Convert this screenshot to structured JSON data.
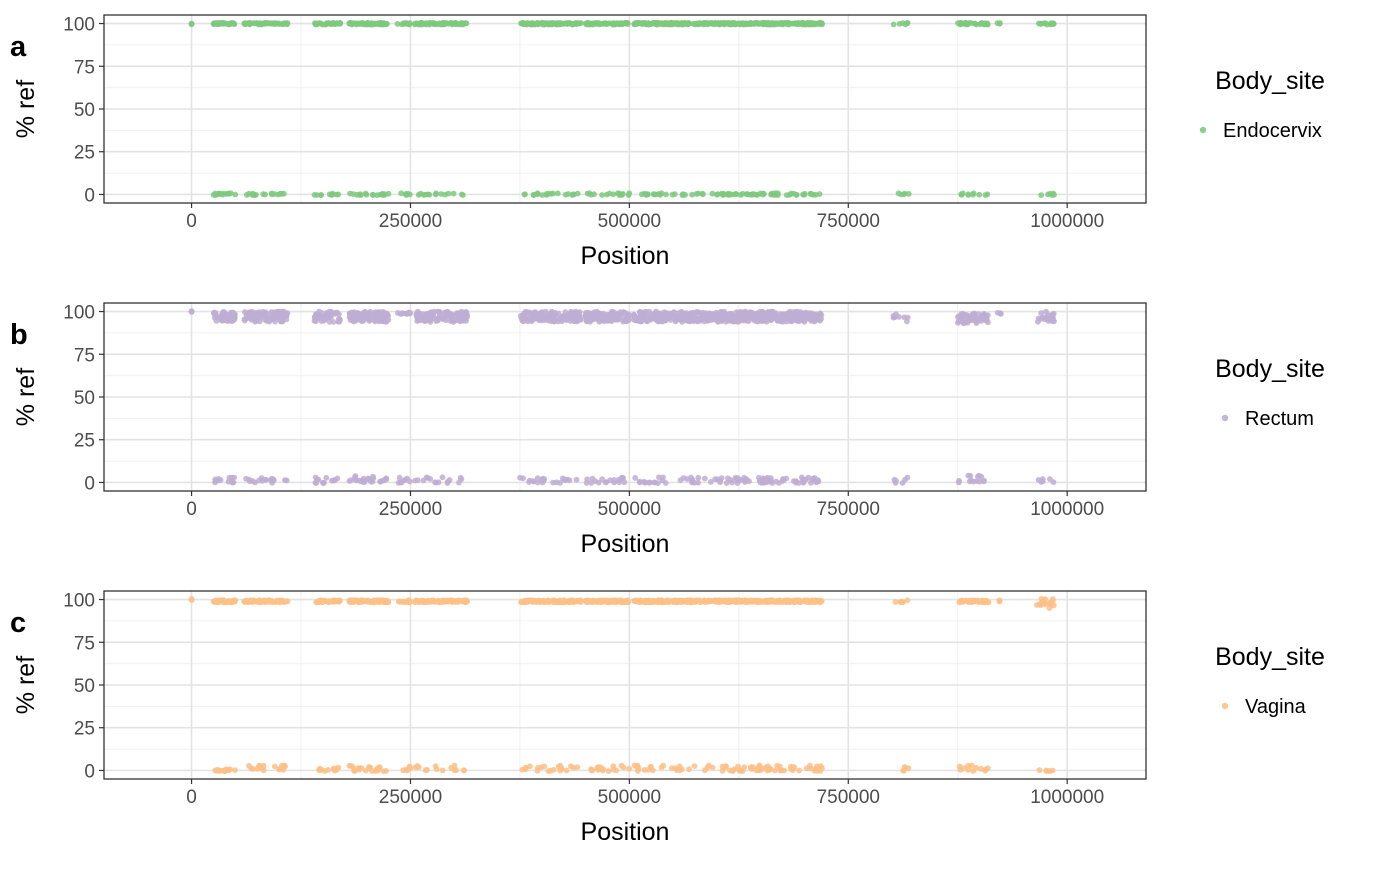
{
  "chart_data": [
    {
      "panel_label": "a",
      "type": "scatter",
      "xlabel": "Position",
      "ylabel": "% ref",
      "xlim": [
        -100000,
        1090000
      ],
      "ylim": [
        -5,
        105
      ],
      "x_ticks": [
        0,
        250000,
        500000,
        750000,
        1000000
      ],
      "x_tick_labels": [
        "0",
        "250000",
        "500000",
        "750000",
        "1000000"
      ],
      "y_ticks": [
        0,
        25,
        50,
        75,
        100
      ],
      "y_tick_labels": [
        "0",
        "25",
        "50",
        "75",
        "100"
      ],
      "grid": true,
      "legend": {
        "title": "Body_site",
        "position": "right",
        "entries": [
          "Endocervix"
        ]
      },
      "series": [
        {
          "name": "Endocervix",
          "color": "#7fc97f",
          "clusters": [
            [
              0,
              0,
              100,
              3
            ],
            [
              25000,
              50000,
              100,
              40
            ],
            [
              25000,
              50000,
              0,
              14
            ],
            [
              60000,
              110000,
              100,
              60
            ],
            [
              60000,
              110000,
              0,
              16
            ],
            [
              140000,
              170000,
              100,
              35
            ],
            [
              140000,
              170000,
              0,
              10
            ],
            [
              180000,
              225000,
              100,
              70
            ],
            [
              180000,
              225000,
              0,
              18
            ],
            [
              235000,
              250000,
              100,
              10
            ],
            [
              235000,
              250000,
              0,
              6
            ],
            [
              255000,
              315000,
              100,
              80
            ],
            [
              255000,
              315000,
              0,
              14
            ],
            [
              375000,
              445000,
              100,
              110
            ],
            [
              375000,
              445000,
              0,
              20
            ],
            [
              450000,
              500000,
              100,
              80
            ],
            [
              450000,
              500000,
              0,
              16
            ],
            [
              505000,
              540000,
              100,
              60
            ],
            [
              505000,
              540000,
              0,
              12
            ],
            [
              540000,
              600000,
              100,
              90
            ],
            [
              540000,
              600000,
              0,
              12
            ],
            [
              600000,
              660000,
              100,
              120
            ],
            [
              600000,
              660000,
              0,
              30
            ],
            [
              660000,
              720000,
              100,
              100
            ],
            [
              660000,
              720000,
              0,
              26
            ],
            [
              800000,
              820000,
              100,
              6
            ],
            [
              800000,
              820000,
              0,
              5
            ],
            [
              875000,
              910000,
              100,
              30
            ],
            [
              875000,
              910000,
              0,
              10
            ],
            [
              920000,
              925000,
              100,
              3
            ],
            [
              965000,
              985000,
              100,
              14
            ],
            [
              965000,
              985000,
              0,
              6
            ]
          ]
        }
      ]
    },
    {
      "panel_label": "b",
      "type": "scatter",
      "xlabel": "Position",
      "ylabel": "% ref",
      "xlim": [
        -100000,
        1090000
      ],
      "ylim": [
        -5,
        105
      ],
      "x_ticks": [
        0,
        250000,
        500000,
        750000,
        1000000
      ],
      "x_tick_labels": [
        "0",
        "250000",
        "500000",
        "750000",
        "1000000"
      ],
      "y_ticks": [
        0,
        25,
        50,
        75,
        100
      ],
      "y_tick_labels": [
        "0",
        "25",
        "50",
        "75",
        "100"
      ],
      "grid": true,
      "legend": {
        "title": "Body_site",
        "position": "right",
        "entries": [
          "Rectum"
        ]
      },
      "series": [
        {
          "name": "Rectum",
          "color": "#beaed4",
          "clusters": [
            [
              0,
              0,
              100,
              3
            ],
            [
              25000,
              50000,
              97,
              60
            ],
            [
              25000,
              50000,
              1,
              14
            ],
            [
              60000,
              110000,
              97,
              90
            ],
            [
              60000,
              110000,
              1,
              18
            ],
            [
              140000,
              170000,
              97,
              50
            ],
            [
              140000,
              170000,
              1,
              14
            ],
            [
              180000,
              225000,
              97,
              100
            ],
            [
              180000,
              225000,
              2,
              26
            ],
            [
              235000,
              250000,
              99,
              14
            ],
            [
              235000,
              250000,
              1,
              8
            ],
            [
              255000,
              315000,
              97,
              110
            ],
            [
              255000,
              315000,
              1,
              16
            ],
            [
              375000,
              445000,
              97,
              130
            ],
            [
              375000,
              445000,
              1,
              22
            ],
            [
              450000,
              500000,
              97,
              110
            ],
            [
              450000,
              500000,
              1,
              18
            ],
            [
              505000,
              540000,
              97,
              90
            ],
            [
              505000,
              540000,
              1,
              14
            ],
            [
              540000,
              600000,
              97,
              110
            ],
            [
              540000,
              600000,
              1,
              14
            ],
            [
              600000,
              660000,
              97,
              150
            ],
            [
              600000,
              660000,
              1,
              34
            ],
            [
              660000,
              720000,
              97,
              120
            ],
            [
              660000,
              720000,
              1,
              28
            ],
            [
              800000,
              820000,
              96,
              8
            ],
            [
              800000,
              820000,
              1,
              6
            ],
            [
              875000,
              910000,
              96,
              50
            ],
            [
              875000,
              910000,
              2,
              14
            ],
            [
              920000,
              925000,
              99,
              3
            ],
            [
              965000,
              985000,
              97,
              20
            ],
            [
              965000,
              985000,
              1,
              6
            ]
          ]
        }
      ]
    },
    {
      "panel_label": "c",
      "type": "scatter",
      "xlabel": "Position",
      "ylabel": "% ref",
      "xlim": [
        -100000,
        1090000
      ],
      "ylim": [
        -5,
        105
      ],
      "x_ticks": [
        0,
        250000,
        500000,
        750000,
        1000000
      ],
      "x_tick_labels": [
        "0",
        "250000",
        "500000",
        "750000",
        "1000000"
      ],
      "y_ticks": [
        0,
        25,
        50,
        75,
        100
      ],
      "y_tick_labels": [
        "0",
        "25",
        "50",
        "75",
        "100"
      ],
      "grid": true,
      "legend": {
        "title": "Body_site",
        "position": "right",
        "entries": [
          "Vagina"
        ]
      },
      "series": [
        {
          "name": "Vagina",
          "color": "#fdc086",
          "clusters": [
            [
              0,
              0,
              100,
              3
            ],
            [
              25000,
              50000,
              99,
              50
            ],
            [
              25000,
              50000,
              0,
              14
            ],
            [
              60000,
              110000,
              99,
              80
            ],
            [
              60000,
              110000,
              1,
              18
            ],
            [
              140000,
              170000,
              99,
              45
            ],
            [
              140000,
              170000,
              1,
              12
            ],
            [
              180000,
              225000,
              99,
              90
            ],
            [
              180000,
              225000,
              1,
              22
            ],
            [
              235000,
              250000,
              99,
              12
            ],
            [
              235000,
              250000,
              1,
              6
            ],
            [
              255000,
              315000,
              99,
              100
            ],
            [
              255000,
              315000,
              1,
              14
            ],
            [
              375000,
              445000,
              99,
              120
            ],
            [
              375000,
              445000,
              1,
              20
            ],
            [
              450000,
              500000,
              99,
              100
            ],
            [
              450000,
              500000,
              1,
              16
            ],
            [
              505000,
              540000,
              99,
              80
            ],
            [
              505000,
              540000,
              1,
              12
            ],
            [
              540000,
              600000,
              99,
              100
            ],
            [
              540000,
              600000,
              1,
              12
            ],
            [
              600000,
              660000,
              99,
              140
            ],
            [
              600000,
              660000,
              1,
              30
            ],
            [
              660000,
              720000,
              99,
              110
            ],
            [
              660000,
              720000,
              1,
              24
            ],
            [
              800000,
              820000,
              99,
              6
            ],
            [
              800000,
              820000,
              1,
              5
            ],
            [
              875000,
              910000,
              99,
              45
            ],
            [
              875000,
              910000,
              1,
              12
            ],
            [
              920000,
              925000,
              99,
              3
            ],
            [
              965000,
              985000,
              98,
              18
            ],
            [
              965000,
              985000,
              0,
              6
            ]
          ]
        }
      ]
    }
  ]
}
